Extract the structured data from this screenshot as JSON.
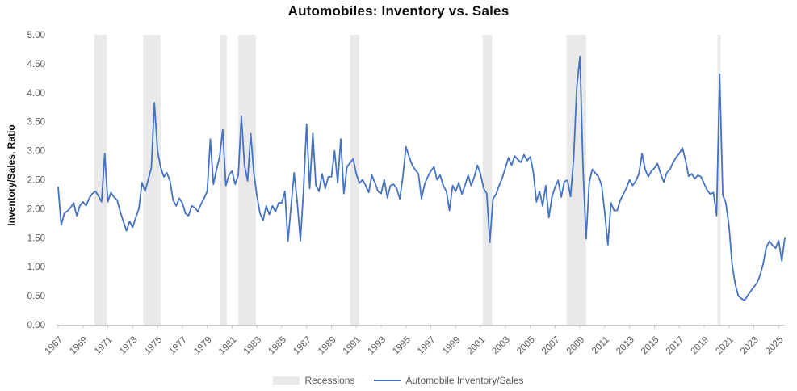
{
  "title": "Automobiles: Inventory vs. Sales",
  "legend": {
    "recessions_label": "Recessions",
    "series_label": "Automobile Inventory/Sales"
  },
  "colors": {
    "line": "#4472C4",
    "recession_band": "#E9E9E9",
    "axis": "#C9C9C9",
    "tick_label": "#595959",
    "title_text": "#0d0d0d"
  },
  "chart_data": {
    "type": "line",
    "title": "Automobiles: Inventory vs. Sales",
    "xlabel": "",
    "ylabel": "Inventory/Sales, Ratio",
    "ylim": [
      0,
      5
    ],
    "ytick_step": 0.5,
    "ytick_decimals": 2,
    "xlim": [
      1967,
      2025.5
    ],
    "xticks": [
      1967,
      1969,
      1971,
      1973,
      1975,
      1977,
      1979,
      1981,
      1983,
      1985,
      1987,
      1989,
      1991,
      1993,
      1995,
      1997,
      1999,
      2001,
      2003,
      2005,
      2007,
      2009,
      2011,
      2013,
      2015,
      2017,
      2019,
      2021,
      2023,
      2025
    ],
    "grid": false,
    "legend_position": "bottom",
    "recession_bands": [
      [
        1969.92,
        1970.92
      ],
      [
        1973.83,
        1975.25
      ],
      [
        1980.0,
        1980.58
      ],
      [
        1981.5,
        1982.92
      ],
      [
        1990.5,
        1991.25
      ],
      [
        2001.17,
        2001.92
      ],
      [
        2007.92,
        2009.5
      ],
      [
        2020.08,
        2020.33
      ]
    ],
    "series": [
      {
        "name": "Automobile Inventory/Sales",
        "frequency": "quarterly",
        "x_start": 1967,
        "x_step": 0.25,
        "values": [
          2.37,
          1.72,
          1.92,
          1.96,
          2.02,
          2.1,
          1.88,
          2.05,
          2.12,
          2.05,
          2.18,
          2.26,
          2.3,
          2.22,
          2.12,
          2.95,
          2.12,
          2.28,
          2.2,
          2.15,
          1.95,
          1.78,
          1.62,
          1.78,
          1.68,
          1.85,
          2.0,
          2.45,
          2.3,
          2.5,
          2.7,
          3.83,
          3.0,
          2.72,
          2.55,
          2.62,
          2.48,
          2.15,
          2.05,
          2.18,
          2.1,
          1.92,
          1.88,
          2.05,
          2.02,
          1.95,
          2.08,
          2.18,
          2.3,
          3.2,
          2.42,
          2.68,
          2.9,
          3.36,
          2.4,
          2.58,
          2.65,
          2.42,
          2.58,
          3.6,
          2.75,
          2.48,
          3.3,
          2.62,
          2.22,
          1.92,
          1.8,
          2.05,
          1.9,
          2.05,
          1.95,
          2.1,
          2.1,
          2.3,
          1.44,
          2.05,
          2.62,
          2.1,
          1.45,
          2.3,
          3.46,
          2.35,
          3.3,
          2.4,
          2.3,
          2.6,
          2.35,
          2.55,
          2.55,
          3.0,
          2.45,
          3.2,
          2.26,
          2.72,
          2.79,
          2.86,
          2.6,
          2.44,
          2.5,
          2.4,
          2.28,
          2.58,
          2.45,
          2.3,
          2.26,
          2.5,
          2.19,
          2.4,
          2.42,
          2.35,
          2.17,
          2.55,
          3.07,
          2.9,
          2.75,
          2.67,
          2.6,
          2.17,
          2.42,
          2.55,
          2.65,
          2.72,
          2.5,
          2.58,
          2.4,
          2.3,
          1.97,
          2.4,
          2.3,
          2.45,
          2.25,
          2.4,
          2.58,
          2.4,
          2.55,
          2.75,
          2.6,
          2.35,
          2.26,
          1.42,
          2.17,
          2.25,
          2.4,
          2.53,
          2.7,
          2.88,
          2.75,
          2.91,
          2.85,
          2.8,
          2.93,
          2.83,
          2.9,
          2.63,
          2.12,
          2.3,
          2.05,
          2.4,
          1.85,
          2.2,
          2.37,
          2.49,
          2.2,
          2.47,
          2.49,
          2.21,
          2.88,
          4.1,
          4.63,
          2.7,
          1.48,
          2.45,
          2.68,
          2.61,
          2.55,
          2.4,
          1.93,
          1.38,
          2.1,
          1.97,
          1.97,
          2.15,
          2.25,
          2.36,
          2.5,
          2.4,
          2.48,
          2.6,
          2.95,
          2.68,
          2.55,
          2.65,
          2.7,
          2.78,
          2.6,
          2.46,
          2.62,
          2.68,
          2.8,
          2.89,
          2.95,
          3.05,
          2.84,
          2.56,
          2.6,
          2.52,
          2.58,
          2.55,
          2.43,
          2.32,
          2.25,
          2.28,
          1.88,
          4.32,
          2.23,
          2.1,
          1.7,
          1.05,
          0.7,
          0.5,
          0.45,
          0.42,
          0.5,
          0.58,
          0.65,
          0.72,
          0.85,
          1.05,
          1.33,
          1.44,
          1.37,
          1.32,
          1.45,
          1.1,
          1.5
        ]
      }
    ]
  }
}
